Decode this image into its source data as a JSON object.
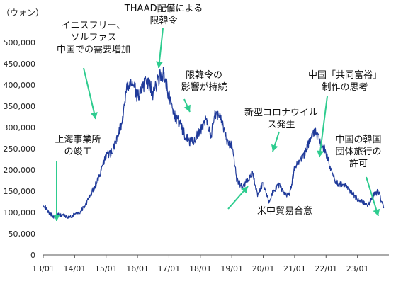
{
  "chart_data": {
    "type": "line",
    "unit_label": "（ウォン）",
    "ylim": [
      0,
      500000
    ],
    "yticks": [
      0,
      50000,
      100000,
      150000,
      200000,
      250000,
      300000,
      350000,
      400000,
      450000,
      500000
    ],
    "ytick_labels": [
      "0",
      "50,000",
      "100,000",
      "150,000",
      "200,000",
      "250,000",
      "300,000",
      "350,000",
      "400,000",
      "450,000",
      "500,000"
    ],
    "xlim": [
      "2013-01",
      "2024-01"
    ],
    "xticks": [
      "2013-01",
      "2014-01",
      "2015-01",
      "2016-01",
      "2017-01",
      "2018-01",
      "2019-01",
      "2020-01",
      "2021-01",
      "2022-01",
      "2023-01"
    ],
    "xtick_labels": [
      "13/01",
      "14/01",
      "15/01",
      "16/01",
      "17/01",
      "18/01",
      "19/01",
      "20/01",
      "21/01",
      "22/01",
      "23/01"
    ],
    "grid": false,
    "legend": "none",
    "colors": {
      "line": "#1f3a9a",
      "arrow": "#2ecc8f"
    },
    "series": [
      {
        "x": [
          "2013-01",
          "2013-03",
          "2013-05",
          "2013-07",
          "2013-09",
          "2013-11",
          "2014-01",
          "2014-03",
          "2014-05",
          "2014-07",
          "2014-09",
          "2014-11",
          "2015-01",
          "2015-03",
          "2015-05",
          "2015-07",
          "2015-09",
          "2015-11",
          "2016-01",
          "2016-03",
          "2016-05",
          "2016-07",
          "2016-09",
          "2016-11",
          "2017-01",
          "2017-03",
          "2017-05",
          "2017-07",
          "2017-09",
          "2017-11",
          "2018-01",
          "2018-03",
          "2018-05",
          "2018-07",
          "2018-09",
          "2018-11",
          "2019-01",
          "2019-03",
          "2019-05",
          "2019-07",
          "2019-09",
          "2019-11",
          "2020-01",
          "2020-03",
          "2020-05",
          "2020-07",
          "2020-09",
          "2020-11",
          "2021-01",
          "2021-03",
          "2021-05",
          "2021-07",
          "2021-09",
          "2021-11",
          "2022-01",
          "2022-03",
          "2022-05",
          "2022-07",
          "2022-09",
          "2022-11",
          "2023-01",
          "2023-03",
          "2023-05",
          "2023-07",
          "2023-09",
          "2023-11"
        ],
        "values": [
          120000,
          100000,
          90000,
          95000,
          92000,
          88000,
          95000,
          100000,
          118000,
          140000,
          165000,
          195000,
          235000,
          240000,
          270000,
          310000,
          390000,
          410000,
          370000,
          400000,
          405000,
          380000,
          415000,
          430000,
          375000,
          330000,
          310000,
          285000,
          265000,
          270000,
          295000,
          320000,
          280000,
          340000,
          320000,
          270000,
          255000,
          175000,
          160000,
          175000,
          190000,
          140000,
          170000,
          125000,
          150000,
          165000,
          145000,
          140000,
          205000,
          220000,
          240000,
          275000,
          290000,
          265000,
          240000,
          195000,
          170000,
          165000,
          160000,
          145000,
          130000,
          125000,
          115000,
          140000,
          150000,
          110000
        ]
      }
    ],
    "annotations": [
      {
        "lines": [
          "上海事業所",
          "の竣工"
        ]
      },
      {
        "lines": [
          "イニスフリー、",
          "ソルファス",
          "中国での需要増加"
        ]
      },
      {
        "lines": [
          "THAAD配備による",
          "限韓令"
        ]
      },
      {
        "lines": [
          "限韓令の",
          "影響が持続"
        ]
      },
      {
        "lines": [
          "新型コロナウイル",
          "ス発生"
        ]
      },
      {
        "lines": [
          "中国「共同富裕」",
          "制作の思考"
        ]
      },
      {
        "lines": [
          "中国の韓国",
          "団体旅行の",
          "許可"
        ]
      },
      {
        "lines": [
          "米中貿易合意"
        ]
      }
    ]
  }
}
